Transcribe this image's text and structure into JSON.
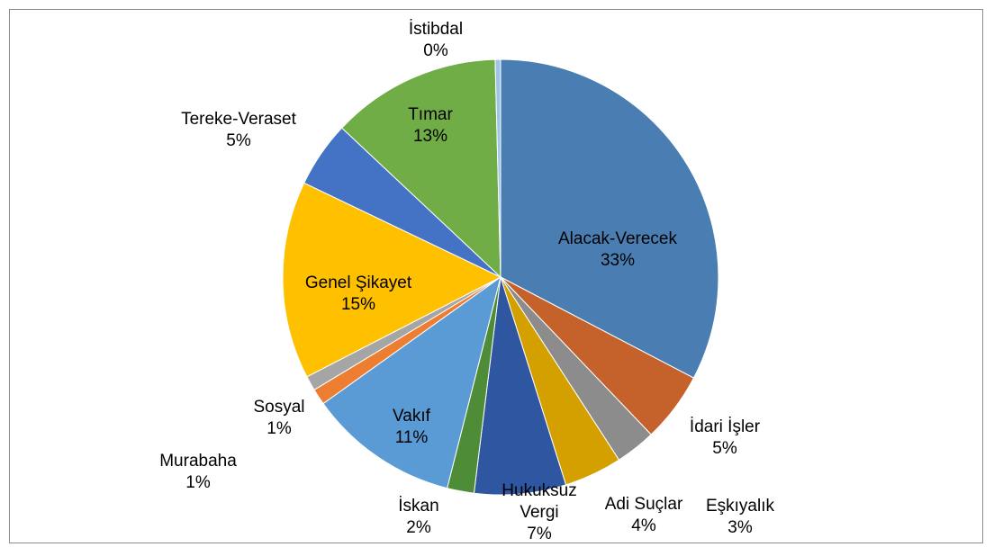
{
  "chart_data": {
    "type": "pie",
    "categories": [
      "Alacak-Verecek",
      "İdari İşler",
      "Eşkıyalık",
      "Adi Suçlar",
      "Hukuksuz Vergi",
      "İskan",
      "Vakıf",
      "Murabaha",
      "Sosyal",
      "Genel Şikayet",
      "Tereke-Veraset",
      "Tımar",
      "İstibdal"
    ],
    "values": [
      32.7,
      5.2,
      3,
      4.3,
      6.8,
      2,
      11.2,
      1.2,
      1.1,
      14.7,
      4.9,
      12.6,
      0.4
    ],
    "value_labels": [
      "33%",
      "5%",
      "3%",
      "4%",
      "7%",
      "2%",
      "11%",
      "1%",
      "1%",
      "15%",
      "5%",
      "13%",
      "0%"
    ],
    "colors": [
      "#4a7eb3",
      "#c5612a",
      "#8c8c8c",
      "#d4a000",
      "#2f56a0",
      "#4e8c37",
      "#5b9bd5",
      "#ed7d31",
      "#a5a5a5",
      "#ffc000",
      "#4472c4",
      "#70ad47",
      "#9dc3e6"
    ]
  }
}
